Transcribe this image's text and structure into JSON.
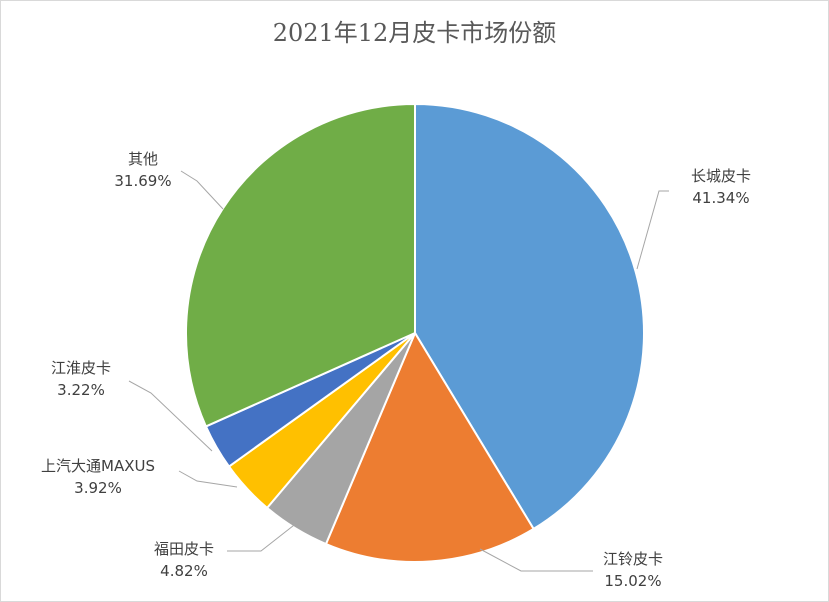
{
  "chart_data": {
    "type": "pie",
    "title": "2021年12月皮卡市场份额",
    "slices": [
      {
        "name": "长城皮卡",
        "value": 41.34,
        "label": "41.34%",
        "color": "#5b9bd5"
      },
      {
        "name": "江铃皮卡",
        "value": 15.02,
        "label": "15.02%",
        "color": "#ed7d31"
      },
      {
        "name": "福田皮卡",
        "value": 4.82,
        "label": "4.82%",
        "color": "#a5a5a5"
      },
      {
        "name": "上汽大通MAXUS",
        "value": 3.92,
        "label": "3.92%",
        "color": "#ffc000"
      },
      {
        "name": "江淮皮卡",
        "value": 3.22,
        "label": "3.22%",
        "color": "#4472c4"
      },
      {
        "name": "其他",
        "value": 31.69,
        "label": "31.69%",
        "color": "#70ad47"
      }
    ],
    "start_angle": "12 o'clock",
    "direction": "clockwise",
    "legend": "none"
  }
}
